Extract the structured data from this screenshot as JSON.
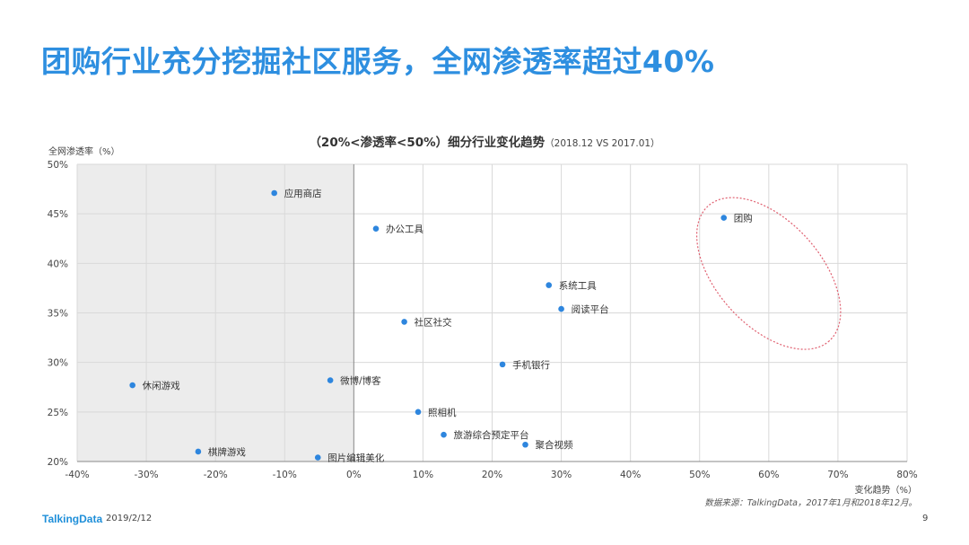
{
  "page": {
    "title": "团购行业充分挖掘社区服务，全网渗透率超过40%",
    "logo": "TalkingData",
    "date": "2019/2/12",
    "page_number": "9"
  },
  "colors": {
    "title": "#2e8fe0",
    "point": "#2e86de",
    "shade": "#ececec",
    "highlight_ellipse": "#e06070",
    "grid": "#d9d9d9"
  },
  "chart_data": {
    "type": "scatter",
    "title": "（20%<渗透率<50%）细分行业变化趋势",
    "subtitle": "（2018.12  VS 2017.01）",
    "xlabel": "变化趋势（%）",
    "ylabel": "全网渗透率（%）",
    "source": "数据来源：TalkingData，2017年1月和2018年12月。",
    "xlim": [
      -40,
      80
    ],
    "ylim": [
      20,
      50
    ],
    "x_ticks": [
      "-40%",
      "-30%",
      "-20%",
      "-10%",
      "0%",
      "10%",
      "20%",
      "30%",
      "40%",
      "50%",
      "60%",
      "70%",
      "80%"
    ],
    "y_ticks": [
      "20%",
      "25%",
      "30%",
      "35%",
      "40%",
      "45%",
      "50%"
    ],
    "grid": true,
    "shaded_region": "x < 0",
    "highlight": "团购",
    "points": [
      {
        "label": "应用商店",
        "x": -11.5,
        "y": 47.1
      },
      {
        "label": "办公工具",
        "x": 3.2,
        "y": 43.5
      },
      {
        "label": "团购",
        "x": 53.5,
        "y": 44.6
      },
      {
        "label": "系统工具",
        "x": 28.2,
        "y": 37.8
      },
      {
        "label": "阅读平台",
        "x": 30.0,
        "y": 35.4
      },
      {
        "label": "社区社交",
        "x": 7.3,
        "y": 34.1
      },
      {
        "label": "手机银行",
        "x": 21.5,
        "y": 29.8
      },
      {
        "label": "休闲游戏",
        "x": -32.0,
        "y": 27.7
      },
      {
        "label": "微博/博客",
        "x": -3.4,
        "y": 28.2
      },
      {
        "label": "照相机",
        "x": 9.3,
        "y": 25.0
      },
      {
        "label": "旅游综合预定平台",
        "x": 13.0,
        "y": 22.7
      },
      {
        "label": "聚合视频",
        "x": 24.8,
        "y": 21.7
      },
      {
        "label": "棋牌游戏",
        "x": -22.5,
        "y": 21.0
      },
      {
        "label": "图片编辑美化",
        "x": -5.2,
        "y": 20.4
      }
    ]
  }
}
